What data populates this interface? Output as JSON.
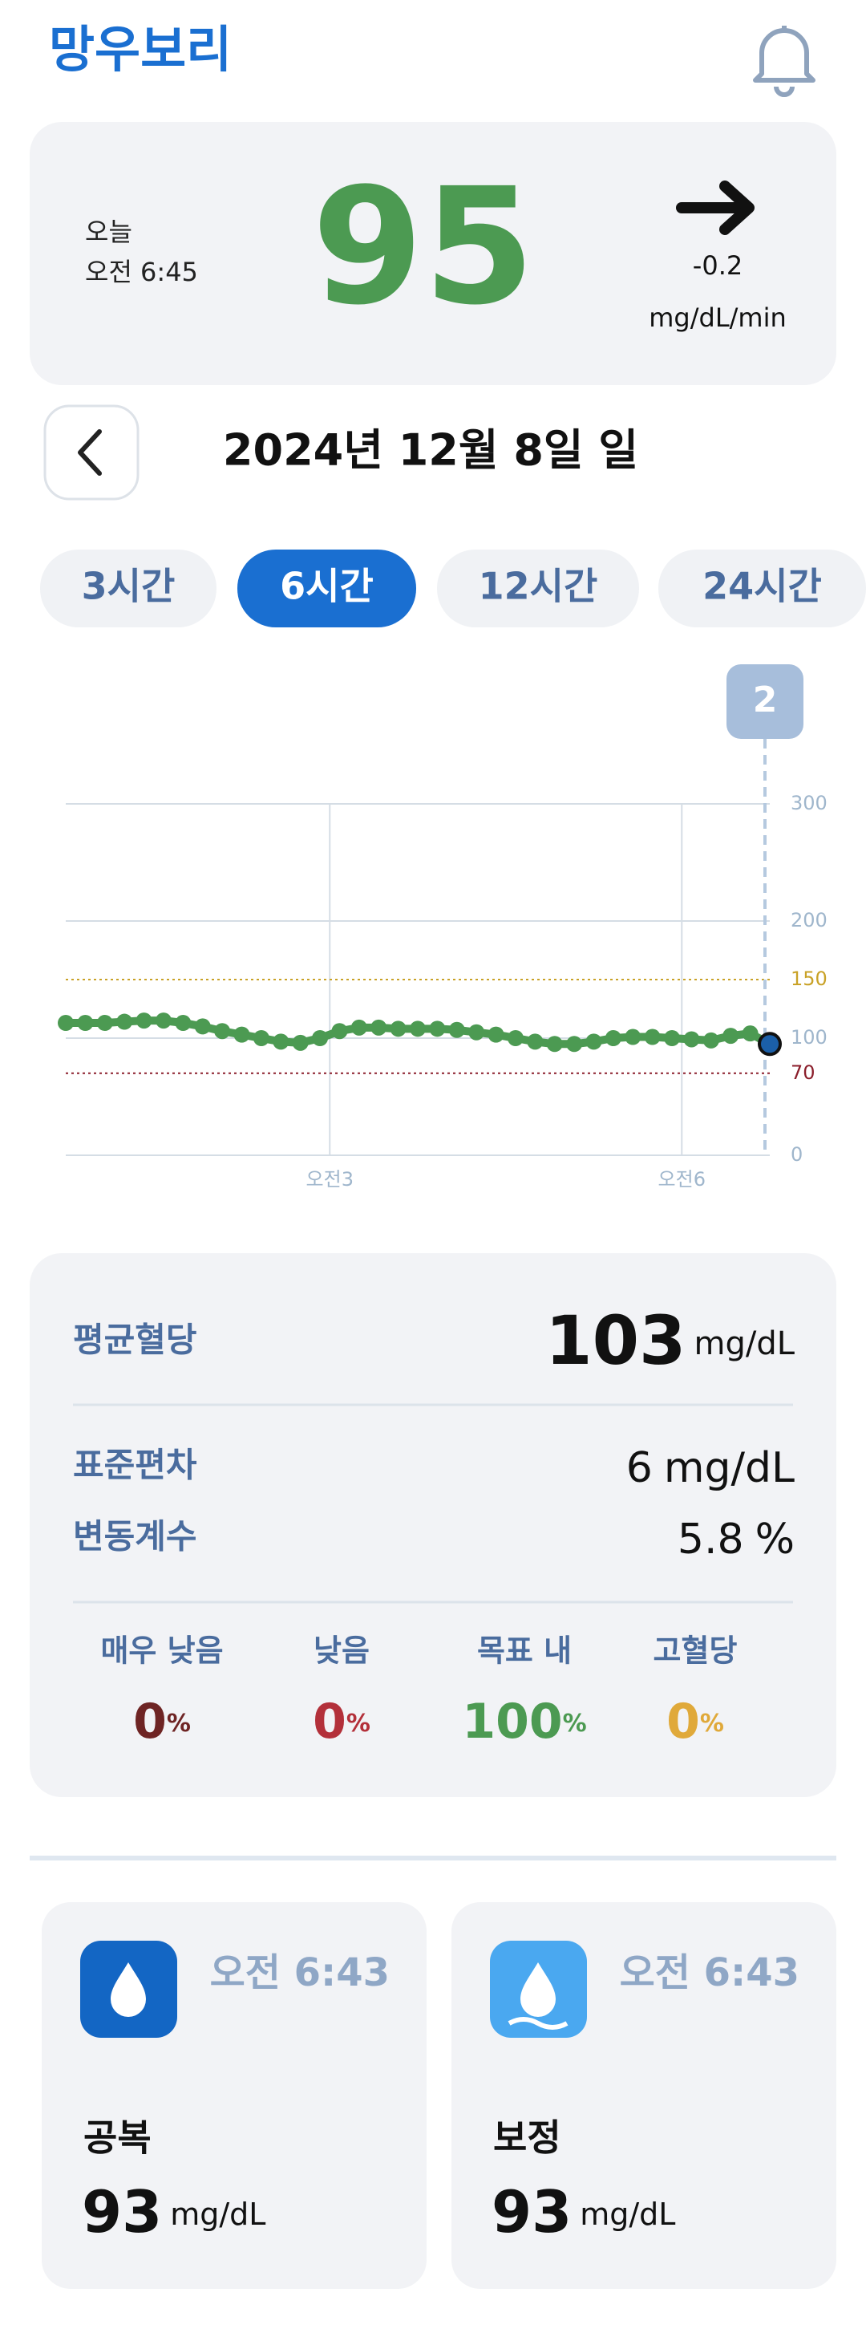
{
  "header": {
    "title": "망우보리"
  },
  "current": {
    "today": "오늘",
    "time": "오전 6:45",
    "value": 95,
    "trend": "-0.2",
    "unit": "mg/dL/min"
  },
  "date_nav": {
    "date": "2024년 12월 8일 일"
  },
  "tabs": {
    "items": [
      "3시간",
      "6시간",
      "12시간",
      "24시간"
    ],
    "selected": 1
  },
  "chart_data": {
    "type": "line",
    "badge": "2",
    "x": [
      45,
      55,
      65,
      75,
      85,
      95,
      105,
      115,
      125,
      135,
      145,
      155,
      165,
      175,
      185,
      195,
      205,
      215,
      225,
      235,
      245,
      255,
      265,
      275,
      285,
      295,
      305,
      315,
      325,
      335,
      345,
      355,
      365,
      375,
      385,
      395,
      405
    ],
    "series": [
      {
        "color": "#4c9a52",
        "last_color": "#1b5fa8",
        "values": [
          113,
          113,
          113,
          114,
          115,
          115,
          113,
          110,
          106,
          103,
          100,
          97,
          96,
          100,
          106,
          109,
          109,
          108,
          108,
          108,
          107,
          105,
          103,
          100,
          97,
          95,
          95,
          97,
          100,
          101,
          101,
          100,
          99,
          98,
          102,
          104,
          95
        ]
      }
    ],
    "xlim": [
      45,
      405
    ],
    "xticks": [
      {
        "value": 180,
        "label": "오전3"
      },
      {
        "value": 360,
        "label": "오전6"
      }
    ],
    "ylim": [
      0,
      300
    ],
    "yticks": [
      0,
      100,
      200,
      300
    ],
    "thresholds": [
      {
        "value": 150,
        "color": "#c9a227"
      },
      {
        "value": 70,
        "color": "#8b1e2b"
      }
    ],
    "grid": true
  },
  "stats": {
    "mean": {
      "label": "평균혈당",
      "value": 103,
      "unit": "mg/dL"
    },
    "sd": {
      "label": "표준편차",
      "value": 6,
      "unit": "mg/dL"
    },
    "cv": {
      "label": "변동계수",
      "value": 5.8,
      "unit": "%"
    },
    "ranges": [
      {
        "label": "매우 낮음",
        "value": 0,
        "unit": "%",
        "color": "#6e2424"
      },
      {
        "label": "낮음",
        "value": 0,
        "unit": "%",
        "color": "#b3303a"
      },
      {
        "label": "목표 내",
        "value": 100,
        "unit": "%",
        "color": "#4c9a52"
      },
      {
        "label": "고혈당",
        "value": 0,
        "unit": "%",
        "color": "#e0a93a"
      }
    ]
  },
  "records": [
    {
      "time": "오전 6:43",
      "label": "공복",
      "value": 93,
      "unit": "mg/dL"
    },
    {
      "time": "오전 6:43",
      "label": "보정",
      "value": 93,
      "unit": "mg/dL"
    }
  ]
}
